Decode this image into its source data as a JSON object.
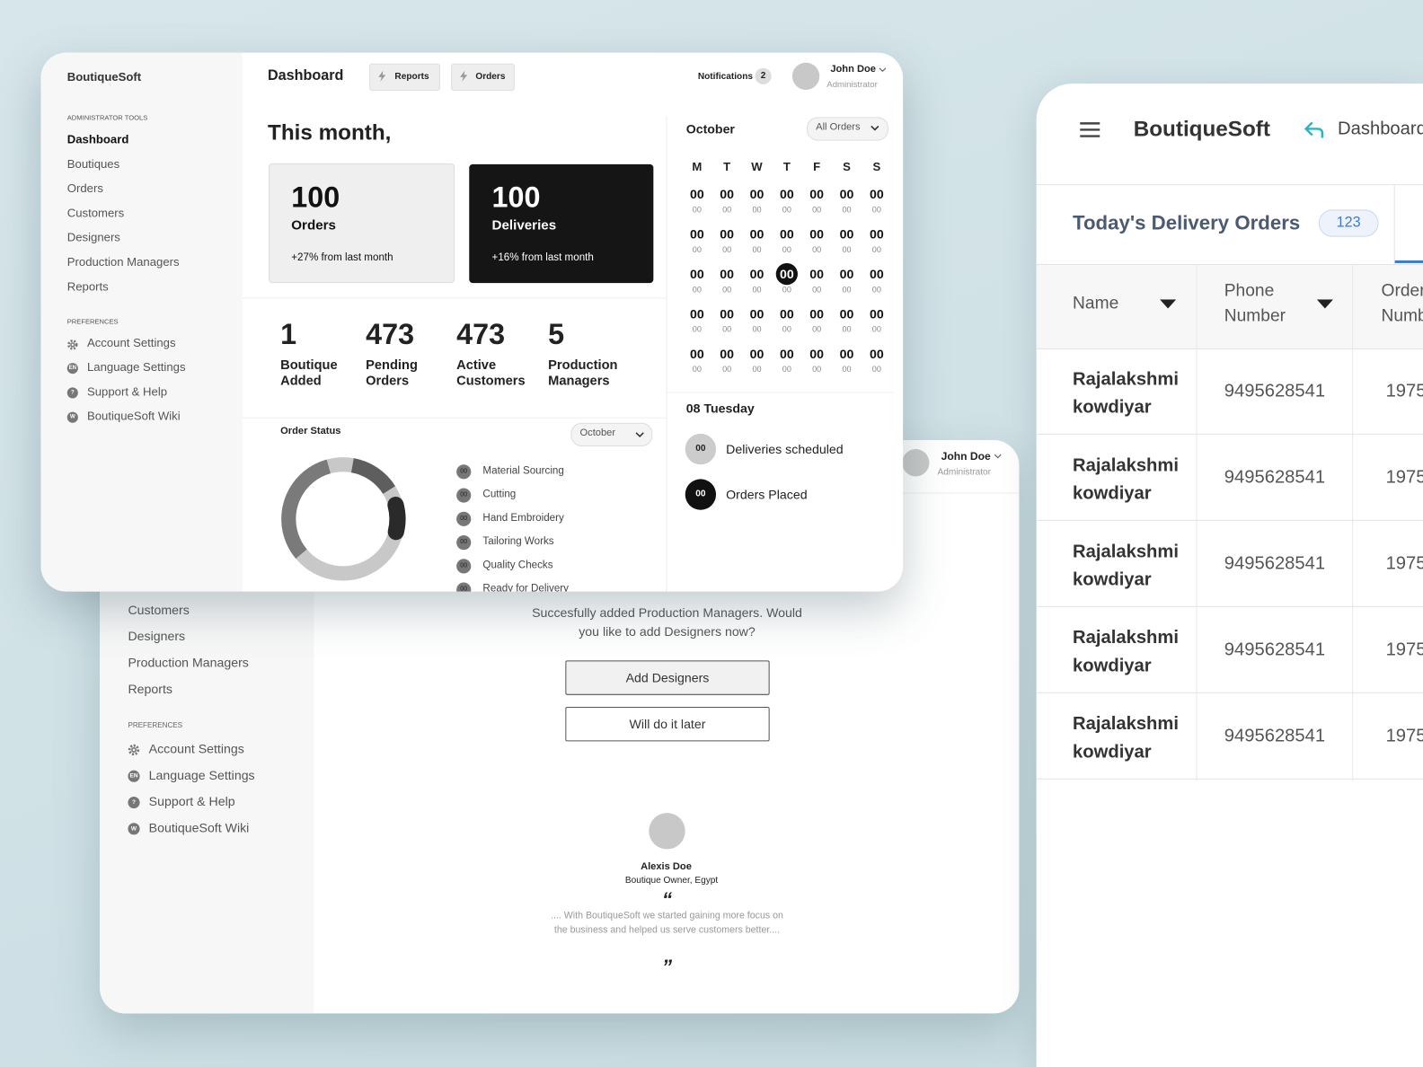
{
  "dashboard": {
    "sidebar": {
      "brand": "BoutiqueSoft",
      "admin_heading": "ADMINISTRATOR TOOLS",
      "admin_items": [
        "Dashboard",
        "Boutiques",
        "Orders",
        "Customers",
        "Designers",
        "Production Managers",
        "Reports"
      ],
      "pref_heading": "PREFERENCES",
      "pref_items": [
        {
          "label": "Account Settings"
        },
        {
          "icon": "EN",
          "label": "Language Settings"
        },
        {
          "icon": "?",
          "label": "Support & Help"
        },
        {
          "icon": "W",
          "label": "BoutiqueSoft Wiki"
        }
      ]
    },
    "header": {
      "title": "Dashboard",
      "buttons": [
        "Reports",
        "Orders"
      ],
      "notifications": "Notifications",
      "notification_count": 2,
      "user_name": "John Doe",
      "user_role": "Administrator"
    },
    "summary": {
      "title": "This month,",
      "cards": [
        {
          "value": 100,
          "label": "Orders",
          "change": "+27% from last month"
        },
        {
          "value": 100,
          "label": "Deliveries",
          "change": "+16% from last month"
        }
      ],
      "stats": [
        {
          "value": 1,
          "label": "Boutique Added"
        },
        {
          "value": 473,
          "label": "Pending Orders"
        },
        {
          "value": 473,
          "label": "Active Customers"
        },
        {
          "value": 5,
          "label": "Production Managers"
        }
      ]
    },
    "order_status": {
      "title": "Order Status",
      "filter": "October",
      "stages": [
        {
          "count": "00",
          "label": "Material Sourcing"
        },
        {
          "count": "00",
          "label": "Cutting"
        },
        {
          "count": "00",
          "label": "Hand Embroidery"
        },
        {
          "count": "00",
          "label": "Tailoring Works"
        },
        {
          "count": "00",
          "label": "Quality Checks"
        },
        {
          "count": "00",
          "label": "Ready for Delivery"
        }
      ]
    },
    "calendar": {
      "month": "October",
      "filter": "All Orders",
      "weekdays": [
        "M",
        "T",
        "W",
        "T",
        "F",
        "S",
        "S"
      ],
      "weeks": [
        [
          [
            "00",
            "00"
          ],
          [
            "00",
            "00"
          ],
          [
            "00",
            "00"
          ],
          [
            "00",
            "00"
          ],
          [
            "00",
            "00"
          ],
          [
            "00",
            "00"
          ],
          [
            "00",
            "00"
          ]
        ],
        [
          [
            "00",
            "00"
          ],
          [
            "00",
            "00"
          ],
          [
            "00",
            "00"
          ],
          [
            "00",
            "00"
          ],
          [
            "00",
            "00"
          ],
          [
            "00",
            "00"
          ],
          [
            "00",
            "00"
          ]
        ],
        [
          [
            "00",
            "00"
          ],
          [
            "00",
            "00"
          ],
          [
            "00",
            "00"
          ],
          [
            "00",
            "00"
          ],
          [
            "00",
            "00"
          ],
          [
            "00",
            "00"
          ],
          [
            "00",
            "00"
          ]
        ],
        [
          [
            "00",
            "00"
          ],
          [
            "00",
            "00"
          ],
          [
            "00",
            "00"
          ],
          [
            "00",
            "00"
          ],
          [
            "00",
            "00"
          ],
          [
            "00",
            "00"
          ],
          [
            "00",
            "00"
          ]
        ],
        [
          [
            "00",
            "00"
          ],
          [
            "00",
            "00"
          ],
          [
            "00",
            "00"
          ],
          [
            "00",
            "00"
          ],
          [
            "00",
            "00"
          ],
          [
            "00",
            "00"
          ],
          [
            "00",
            "00"
          ]
        ]
      ],
      "selected_date": "08 Tuesday",
      "day_summary": [
        {
          "count": "00",
          "label": "Deliveries scheduled"
        },
        {
          "count": "00",
          "label": "Orders Placed"
        }
      ]
    }
  },
  "onboarding": {
    "sidebar": {
      "items": [
        "Customers",
        "Designers",
        "Production Managers",
        "Reports"
      ],
      "pref_heading": "PREFERENCES",
      "pref_items": [
        {
          "label": "Account Settings"
        },
        {
          "icon": "EN",
          "label": "Language Settings"
        },
        {
          "icon": "?",
          "label": "Support & Help"
        },
        {
          "icon": "W",
          "label": "BoutiqueSoft Wiki"
        }
      ]
    },
    "header": {
      "user_name": "John Doe",
      "user_role": "Administrator"
    },
    "message": "Succesfully added Production Managers. Would you like to add Designers now?",
    "buttons": [
      "Add Designers",
      "Will do it later"
    ],
    "testimonial": {
      "name": "Alexis Doe",
      "role": "Boutique Owner, Egypt",
      "open_quote": "“",
      "quote": ".... With BoutiqueSoft we started gaining more focus on the business and helped us serve customers better....",
      "close_quote": "”"
    }
  },
  "delivery": {
    "brand": "BoutiqueSoft",
    "nav": "Dashboard",
    "title": "Today's Delivery Orders",
    "count": 123,
    "columns": [
      "Name",
      "Phone Number",
      "Order Number"
    ],
    "rows": [
      [
        "Rajalakshmi kowdiyar",
        "9495628541",
        "1975"
      ],
      [
        "Rajalakshmi kowdiyar",
        "9495628541",
        "1975"
      ],
      [
        "Rajalakshmi kowdiyar",
        "9495628541",
        "1975"
      ],
      [
        "Rajalakshmi kowdiyar",
        "9495628541",
        "1975"
      ],
      [
        "Rajalakshmi kowdiyar",
        "9495628541",
        "1975"
      ]
    ]
  }
}
